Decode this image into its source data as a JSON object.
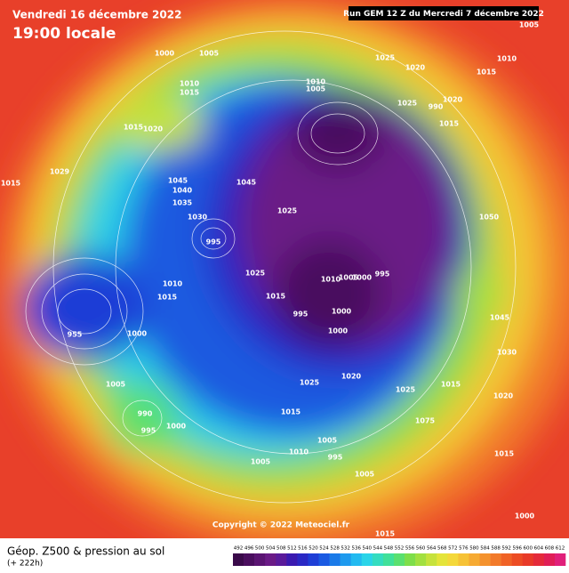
{
  "header": {
    "valid_time": "Vendredi 16 décembre 2022",
    "local_time": "19:00 locale",
    "run": "Run GEM 12 Z du Mercredi 7 décembre 2022"
  },
  "map": {
    "pressure_labels": [
      "1005",
      "1000",
      "1005",
      "1025",
      "1020",
      "1010",
      "1015",
      "1010",
      "1015",
      "1010",
      "1005",
      "1025",
      "990",
      "1020",
      "1015",
      "1020",
      "1015",
      "1029",
      "1015",
      "1045",
      "1040",
      "1045",
      "1035",
      "1030",
      "1025",
      "1050",
      "995",
      "1025",
      "1015",
      "1010",
      "1005",
      "1000",
      "995",
      "1010",
      "1015",
      "995",
      "1000",
      "1000",
      "955",
      "1000",
      "1045",
      "1030",
      "1020",
      "1025",
      "1025",
      "1015",
      "1020",
      "1005",
      "990",
      "995",
      "1000",
      "1015",
      "1075",
      "1005",
      "995",
      "1005",
      "1010",
      "1015",
      "1015",
      "1005",
      "1000"
    ],
    "copyright": "Copyright © 2022 Meteociel.fr"
  },
  "footer": {
    "title": "Géop. Z500 & pression au sol",
    "lead": "(+ 222h)"
  },
  "colorbar": {
    "labels": [
      "492",
      "496",
      "500",
      "504",
      "508",
      "512",
      "516",
      "520",
      "524",
      "528",
      "532",
      "536",
      "540",
      "544",
      "548",
      "552",
      "556",
      "560",
      "564",
      "568",
      "572",
      "576",
      "580",
      "584",
      "588",
      "592",
      "596",
      "600",
      "604",
      "608",
      "612"
    ],
    "colors": [
      "#3a0a4a",
      "#4a0e5e",
      "#5a1472",
      "#6a1a86",
      "#5a1a9a",
      "#3a1ab0",
      "#2a28c4",
      "#1e3ed6",
      "#1a5ae2",
      "#1a7ae8",
      "#1e9aee",
      "#22baf0",
      "#2ad4e8",
      "#34dcc0",
      "#40e09a",
      "#5ae070",
      "#7ede4a",
      "#a2e040",
      "#c6e23c",
      "#e4e43a",
      "#f4d83a",
      "#f6c236",
      "#f6aa32",
      "#f4922e",
      "#f27a2a",
      "#f06226",
      "#ec4c24",
      "#e83a28",
      "#e42a3a",
      "#e01e56",
      "#e0207a"
    ]
  }
}
